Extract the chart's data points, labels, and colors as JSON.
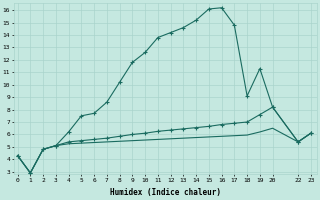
{
  "title": "",
  "xlabel": "Humidex (Indice chaleur)",
  "bg_color": "#c5e8e0",
  "grid_color": "#aad4cc",
  "line_color": "#1a6b60",
  "x_ticks": [
    0,
    1,
    2,
    3,
    4,
    5,
    6,
    7,
    8,
    9,
    10,
    11,
    12,
    13,
    14,
    15,
    16,
    17,
    18,
    19,
    20,
    22,
    23
  ],
  "x_tick_labels": [
    "0",
    "1",
    "2",
    "3",
    "4",
    "5",
    "6",
    "7",
    "8",
    "9",
    "10",
    "11",
    "12",
    "13",
    "14",
    "15",
    "16",
    "17",
    "18",
    "19",
    "20",
    "22",
    "23"
  ],
  "ylim": [
    2.8,
    16.6
  ],
  "xlim": [
    -0.3,
    23.5
  ],
  "main_line": {
    "x": [
      0,
      1,
      2,
      3,
      4,
      5,
      6,
      7,
      8,
      9,
      10,
      11,
      12,
      13,
      14,
      15,
      16,
      17,
      18,
      19,
      20,
      22,
      23
    ],
    "y": [
      4.3,
      2.9,
      4.8,
      5.1,
      6.2,
      7.5,
      7.7,
      8.6,
      10.2,
      11.8,
      12.6,
      13.8,
      14.2,
      14.6,
      15.2,
      16.1,
      16.2,
      14.8,
      9.1,
      11.3,
      8.2,
      5.4,
      6.1
    ]
  },
  "line2": {
    "x": [
      0,
      1,
      2,
      3,
      4,
      5,
      6,
      7,
      8,
      9,
      10,
      11,
      12,
      13,
      14,
      15,
      16,
      17,
      18,
      19,
      20,
      22,
      23
    ],
    "y": [
      4.3,
      2.9,
      4.8,
      5.1,
      5.4,
      5.5,
      5.6,
      5.7,
      5.85,
      6.0,
      6.1,
      6.25,
      6.35,
      6.45,
      6.55,
      6.65,
      6.8,
      6.9,
      7.0,
      7.6,
      8.2,
      5.4,
      6.1
    ]
  },
  "line3": {
    "x": [
      0,
      1,
      2,
      3,
      4,
      5,
      6,
      7,
      8,
      9,
      10,
      11,
      12,
      13,
      14,
      15,
      16,
      17,
      18,
      19,
      20,
      22,
      23
    ],
    "y": [
      4.3,
      2.9,
      4.8,
      5.1,
      5.25,
      5.3,
      5.35,
      5.4,
      5.45,
      5.5,
      5.55,
      5.6,
      5.65,
      5.7,
      5.75,
      5.8,
      5.85,
      5.9,
      5.95,
      6.2,
      6.5,
      5.4,
      6.1
    ]
  }
}
